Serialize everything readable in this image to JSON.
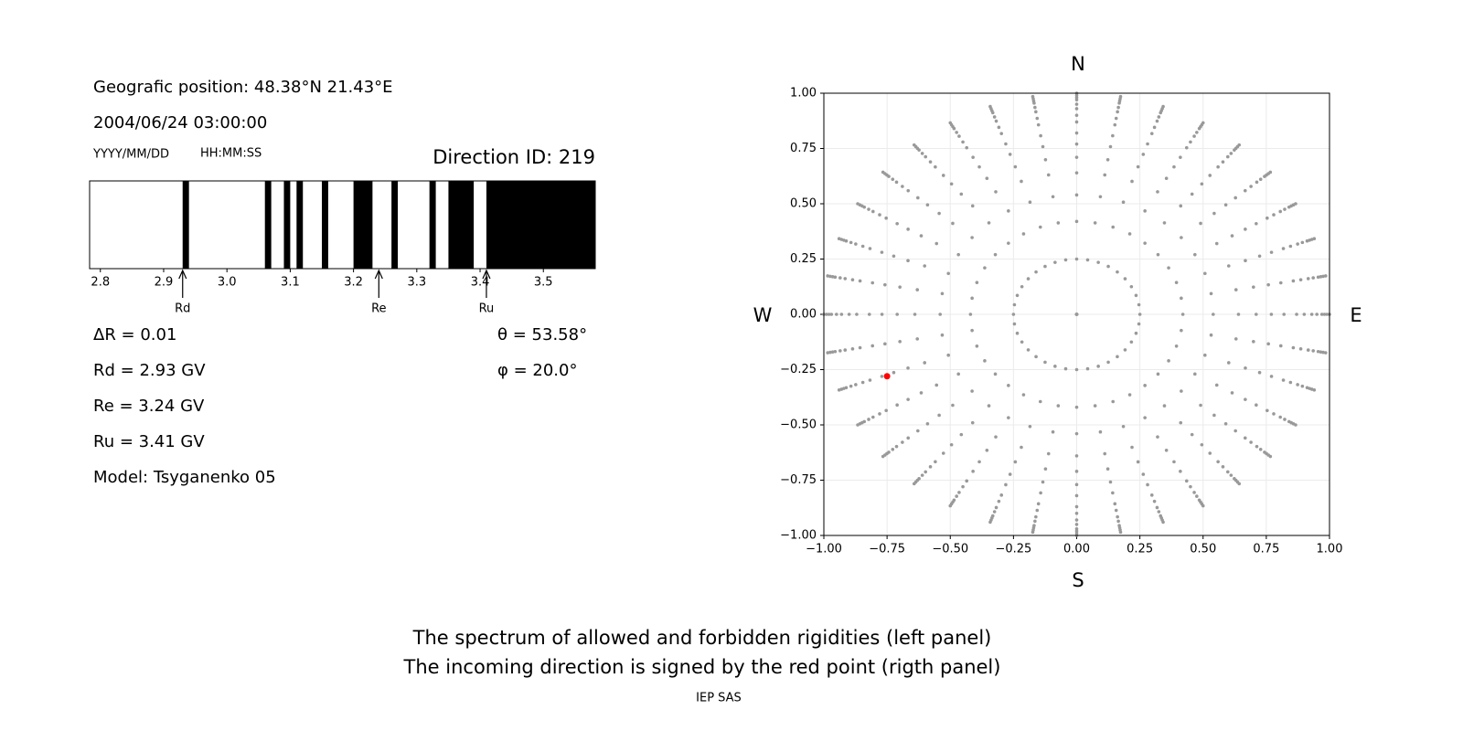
{
  "info": {
    "position": "Geografic position: 48.38°N 21.43°E",
    "datetime": "2004/06/24 03:00:00",
    "date_format": "YYYY/MM/DD",
    "time_format": "HH:MM:SS",
    "direction_id": "Direction ID: 219",
    "delta_r": "ΔR = 0.01",
    "rd": "Rd = 2.93 GV",
    "re": "Re = 3.24 GV",
    "ru": "Ru = 3.41 GV",
    "model": "Model: Tsyganenko 05",
    "theta": "θ = 53.58°",
    "phi": "φ = 20.0°"
  },
  "chart_data": [
    {
      "type": "spectrum",
      "xlim": [
        2.783,
        3.582
      ],
      "xticks": [
        2.8,
        2.9,
        {
          "value": 3,
          "label": "3.0"
        },
        3.1,
        3.2,
        3.3,
        3.4,
        3.5
      ],
      "color": "#000000",
      "forbidden": [
        [
          2.93,
          2.94
        ],
        [
          3.06,
          3.07
        ],
        [
          3.09,
          3.1
        ],
        [
          3.11,
          3.12
        ],
        [
          3.15,
          3.16
        ],
        [
          3.2,
          3.23
        ],
        [
          3.26,
          3.27
        ],
        [
          3.32,
          3.33
        ],
        [
          3.35,
          3.39
        ],
        [
          3.41,
          3.582
        ]
      ],
      "markers": [
        {
          "label": "Rd",
          "value": 2.93
        },
        {
          "label": "Re",
          "value": 3.24
        },
        {
          "label": "Ru",
          "value": 3.41
        }
      ]
    },
    {
      "type": "scatter",
      "xlim": [
        -1,
        1
      ],
      "ylim": [
        -1,
        1
      ],
      "grid": true,
      "color": "#999999",
      "xticks": [
        {
          "value": -1,
          "label": "−1.00"
        },
        {
          "value": -0.75,
          "label": "−0.75"
        },
        {
          "value": -0.5,
          "label": "−0.50"
        },
        {
          "value": -0.25,
          "label": "−0.25"
        },
        {
          "value": 0,
          "label": "0.00"
        },
        {
          "value": 0.25,
          "label": "0.25"
        },
        {
          "value": 0.5,
          "label": "0.50"
        },
        {
          "value": 0.75,
          "label": "0.75"
        },
        {
          "value": 1,
          "label": "1.00"
        }
      ],
      "yticks": [
        {
          "value": -1,
          "label": "−1.00"
        },
        {
          "value": -0.75,
          "label": "−0.75"
        },
        {
          "value": -0.5,
          "label": "−0.50"
        },
        {
          "value": -0.25,
          "label": "−0.25"
        },
        {
          "value": 0,
          "label": "0.00"
        },
        {
          "value": 0.25,
          "label": "0.25"
        },
        {
          "value": 0.5,
          "label": "0.50"
        },
        {
          "value": 0.75,
          "label": "0.75"
        },
        {
          "value": 1,
          "label": "1.00"
        }
      ],
      "azimuths": [
        0,
        10,
        20,
        30,
        40,
        50,
        60,
        70,
        80,
        90,
        100,
        110,
        120,
        130,
        140,
        150,
        160,
        170,
        180,
        190,
        200,
        210,
        220,
        230,
        240,
        250,
        260,
        270,
        280,
        290,
        300,
        310,
        320,
        330,
        340,
        350
      ],
      "radii": [
        0,
        0.25,
        0.42,
        0.54,
        0.64,
        0.71,
        0.77,
        0.82,
        0.87,
        0.9,
        0.93,
        0.95,
        0.97,
        0.98,
        0.99,
        1.0
      ],
      "highlight": {
        "x": -0.75,
        "y": -0.28,
        "color": "#ff0000"
      }
    }
  ],
  "compass": {
    "n": "N",
    "s": "S",
    "w": "W",
    "e": "E"
  },
  "caption": [
    "The spectrum of allowed and forbidden rigidities (left panel)",
    "The incoming direction is signed by the red point (rigth panel)"
  ],
  "footer": "IEP SAS"
}
